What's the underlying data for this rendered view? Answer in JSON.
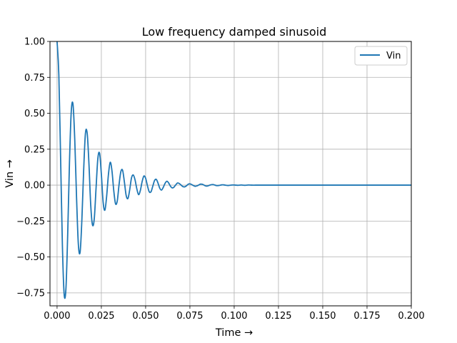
{
  "chart_data": {
    "type": "line",
    "title": "Low frequency damped sinusoid",
    "xlabel": "Time →",
    "ylabel": "Vin →",
    "xlim": [
      -0.004,
      0.2
    ],
    "ylim": [
      -0.84,
      1.0
    ],
    "x_ticks": [
      0.0,
      0.025,
      0.05,
      0.075,
      0.1,
      0.125,
      0.15,
      0.175,
      0.2
    ],
    "x_tick_labels": [
      "0.000",
      "0.025",
      "0.050",
      "0.075",
      "0.100",
      "0.125",
      "0.150",
      "0.175",
      "0.200"
    ],
    "y_ticks": [
      -0.75,
      -0.5,
      -0.25,
      0.0,
      0.25,
      0.5,
      0.75,
      1.0
    ],
    "y_tick_labels": [
      "−0.75",
      "−0.50",
      "−0.25",
      "0.00",
      "0.25",
      "0.50",
      "0.75",
      "1.00"
    ],
    "grid": true,
    "legend": {
      "position": "top-right",
      "entries": [
        "Vin"
      ]
    },
    "series": [
      {
        "name": "Vin",
        "color": "#1f77b4",
        "x": [
          0.0,
          0.001,
          0.002,
          0.003,
          0.004,
          0.005,
          0.006,
          0.007,
          0.008,
          0.009,
          0.01,
          0.011,
          0.012,
          0.013,
          0.014,
          0.015,
          0.016,
          0.017,
          0.018,
          0.019,
          0.02,
          0.021,
          0.022,
          0.023,
          0.024,
          0.025,
          0.026,
          0.027,
          0.028,
          0.029,
          0.03,
          0.031,
          0.032,
          0.033,
          0.034,
          0.035,
          0.036,
          0.037,
          0.038,
          0.039,
          0.04,
          0.041,
          0.042,
          0.043,
          0.044,
          0.045,
          0.046,
          0.047,
          0.048,
          0.049,
          0.05,
          0.051,
          0.052,
          0.053,
          0.054,
          0.055,
          0.056,
          0.057,
          0.058,
          0.059,
          0.06,
          0.061,
          0.062,
          0.063,
          0.064,
          0.065,
          0.066,
          0.067,
          0.068,
          0.069,
          0.07,
          0.071,
          0.072,
          0.073,
          0.074,
          0.075,
          0.076,
          0.077,
          0.078,
          0.079,
          0.08,
          0.081,
          0.082,
          0.083,
          0.084,
          0.085,
          0.086,
          0.087,
          0.088,
          0.089,
          0.09,
          0.091,
          0.092,
          0.093,
          0.094,
          0.095,
          0.096,
          0.097,
          0.098,
          0.099,
          0.1,
          0.102,
          0.104,
          0.106,
          0.108,
          0.11,
          0.112,
          0.114,
          0.116,
          0.118,
          0.12,
          0.122,
          0.124,
          0.126,
          0.128,
          0.13,
          0.135,
          0.14,
          0.145,
          0.15,
          0.16,
          0.17,
          0.18,
          0.19,
          0.2
        ],
        "y": [
          1.0,
          0.767,
          0.189,
          -0.416,
          -0.759,
          -0.721,
          -0.343,
          0.156,
          0.51,
          0.562,
          0.313,
          -0.087,
          -0.408,
          -0.467,
          -0.243,
          0.099,
          0.358,
          0.362,
          0.148,
          -0.138,
          -0.277,
          -0.234,
          -0.024,
          0.182,
          0.222,
          0.077,
          -0.117,
          -0.174,
          -0.076,
          0.074,
          0.159,
          0.099,
          -0.037,
          -0.129,
          -0.109,
          0.004,
          0.093,
          0.103,
          0.023,
          -0.071,
          -0.093,
          -0.033,
          0.049,
          0.071,
          0.038,
          -0.024,
          -0.066,
          -0.038,
          0.023,
          0.063,
          0.048,
          -0.003,
          -0.045,
          -0.047,
          -0.009,
          0.031,
          0.04,
          0.014,
          -0.022,
          -0.034,
          -0.014,
          0.013,
          0.027,
          0.015,
          -0.007,
          -0.019,
          -0.014,
          0.002,
          0.015,
          0.011,
          0.001,
          -0.01,
          -0.012,
          -0.005,
          0.006,
          0.009,
          0.004,
          -0.003,
          -0.008,
          -0.005,
          0.001,
          0.007,
          0.006,
          0.0,
          -0.006,
          -0.006,
          -0.001,
          0.003,
          0.004,
          0.001,
          -0.003,
          -0.003,
          -0.001,
          0.002,
          0.002,
          0.0,
          -0.002,
          -0.002,
          0.0,
          0.001,
          0.001,
          -0.001,
          0.001,
          -0.001,
          0.001,
          0.0,
          0.0,
          0.0,
          0.0,
          0.0,
          0.0,
          0.0,
          0.0,
          0.0,
          0.0,
          0.0,
          0.0,
          0.0,
          0.0,
          0.0,
          0.0,
          0.0,
          0.0,
          0.0,
          0.0
        ]
      }
    ]
  }
}
